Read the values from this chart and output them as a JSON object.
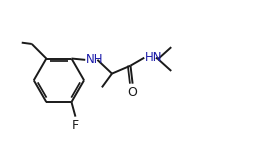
{
  "bg_color": "#ffffff",
  "line_color": "#1a1a1a",
  "label_color_NH": "#1a1aaa",
  "label_color_F": "#1a1a1a",
  "label_color_O": "#1a1a1a",
  "line_width": 1.4,
  "figsize": [
    2.66,
    1.5
  ],
  "dpi": 100,
  "xlim": [
    0.0,
    10.0
  ],
  "ylim": [
    0.5,
    5.5
  ]
}
